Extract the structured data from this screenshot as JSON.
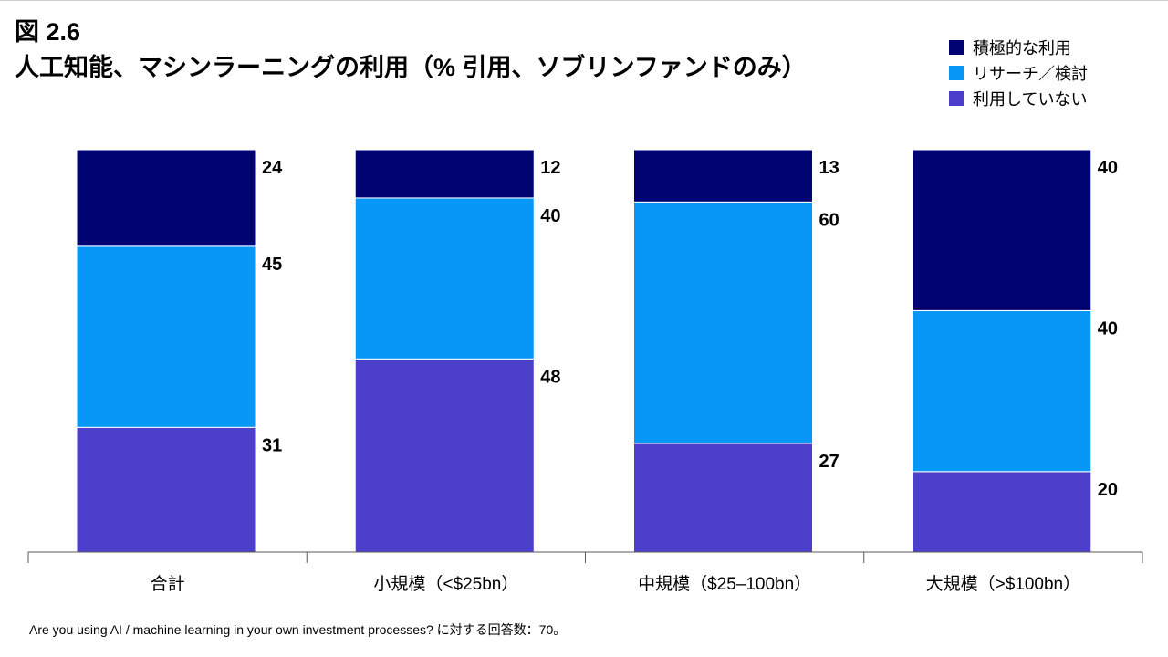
{
  "figure": {
    "number": "図 2.6",
    "title": "人工知能、マシンラーニングの利用（% 引用、ソブリンファンドのみ）"
  },
  "legend": {
    "items": [
      {
        "label": "積極的な利用",
        "color": "#000473"
      },
      {
        "label": "リサーチ／検討",
        "color": "#0797f7"
      },
      {
        "label": "利用していない",
        "color": "#4c3fcc"
      }
    ]
  },
  "footnote": "Are you using AI / machine learning in your own investment processes? に対する回答数：70。",
  "chart_data": {
    "type": "bar",
    "stacked": true,
    "categories": [
      "合計",
      "小規模（<$25bn）",
      "中規模（$25–100bn）",
      "大規模（>$100bn）"
    ],
    "series": [
      {
        "name": "利用していない",
        "values": [
          31,
          48,
          27,
          20
        ],
        "color": "#4c3fcc"
      },
      {
        "name": "リサーチ／検討",
        "values": [
          45,
          40,
          60,
          40
        ],
        "color": "#0797f7"
      },
      {
        "name": "積極的な利用",
        "values": [
          24,
          12,
          13,
          40
        ],
        "color": "#000473"
      }
    ],
    "ylim": [
      0,
      100
    ],
    "grid": false,
    "legend_position": "top-right"
  }
}
